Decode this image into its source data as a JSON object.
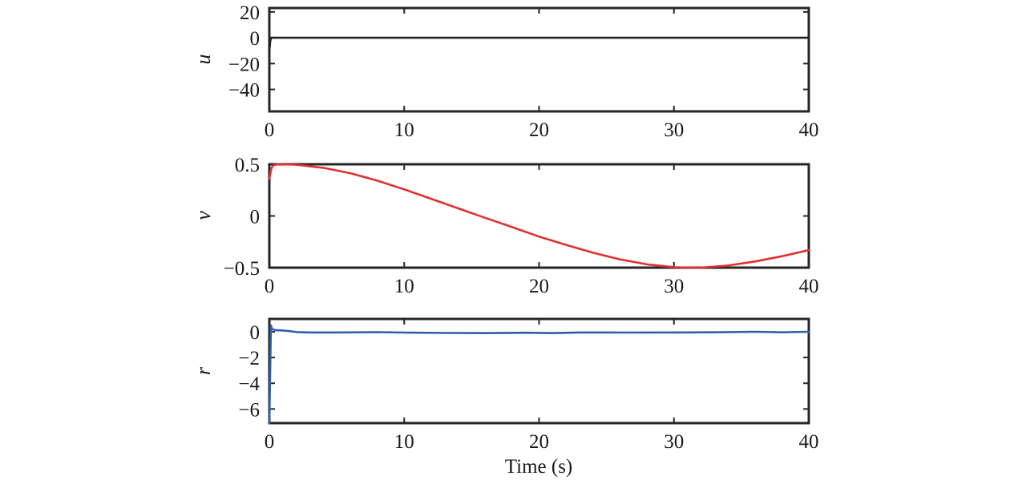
{
  "chart_data": [
    {
      "type": "line",
      "ylabel": "u",
      "xlabel": "",
      "xlim": [
        0,
        40
      ],
      "ylim": [
        -57,
        23
      ],
      "xticks": [
        0,
        10,
        20,
        30,
        40
      ],
      "xtick_labels": [
        "0",
        "10",
        "20",
        "30",
        "40"
      ],
      "yticks": [
        20,
        0,
        -20,
        -40
      ],
      "ytick_labels": [
        "20",
        "0",
        "−20",
        "−40"
      ],
      "grid": false,
      "series": [
        {
          "color": "#222222",
          "x": [
            0,
            0.08,
            0.15,
            1,
            5,
            10,
            20,
            30,
            40
          ],
          "y": [
            -10,
            -2,
            0,
            0,
            0,
            0,
            0,
            0,
            0
          ]
        }
      ]
    },
    {
      "type": "line",
      "ylabel": "v",
      "xlabel": "",
      "xlim": [
        0,
        40
      ],
      "ylim": [
        -0.5,
        0.5
      ],
      "xticks": [
        0,
        10,
        20,
        30,
        40
      ],
      "xtick_labels": [
        "0",
        "10",
        "20",
        "30",
        "40"
      ],
      "yticks": [
        0.5,
        0,
        -0.5
      ],
      "ytick_labels": [
        "0.5",
        "0",
        "−0.5"
      ],
      "grid": false,
      "series": [
        {
          "color": "#e03030",
          "x": [
            0,
            0.15,
            0.3,
            0.6,
            1,
            2,
            4,
            6,
            8,
            10,
            12,
            14,
            16,
            18,
            20,
            22,
            24,
            26,
            28,
            30,
            31,
            32,
            34,
            36,
            38,
            40
          ],
          "y": [
            0.36,
            0.46,
            0.49,
            0.5,
            0.5,
            0.495,
            0.466,
            0.414,
            0.342,
            0.257,
            0.166,
            0.074,
            -0.018,
            -0.108,
            -0.2,
            -0.28,
            -0.356,
            -0.42,
            -0.468,
            -0.495,
            -0.5,
            -0.5,
            -0.48,
            -0.44,
            -0.39,
            -0.33
          ]
        }
      ]
    },
    {
      "type": "line",
      "ylabel": "r",
      "xlabel": "Time (s)",
      "xlim": [
        0,
        40
      ],
      "ylim": [
        -7.1,
        1.0
      ],
      "xticks": [
        0,
        10,
        20,
        30,
        40
      ],
      "xtick_labels": [
        "0",
        "10",
        "20",
        "30",
        "40"
      ],
      "yticks": [
        0,
        -2,
        -4,
        -6
      ],
      "ytick_labels": [
        "0",
        "−2",
        "−4",
        "−6"
      ],
      "grid": false,
      "series": [
        {
          "color": "#2f5ea8",
          "x": [
            0,
            0.05,
            0.12,
            0.2,
            0.5,
            1,
            1.5,
            2,
            3,
            5,
            8,
            10,
            13,
            16,
            19,
            21,
            23,
            26,
            30,
            33,
            36,
            38,
            40
          ],
          "y": [
            -7.1,
            -4.0,
            0.5,
            0.2,
            0.12,
            0.1,
            0.05,
            -0.02,
            -0.05,
            -0.05,
            -0.03,
            -0.06,
            -0.09,
            -0.1,
            -0.07,
            -0.1,
            -0.05,
            -0.06,
            -0.05,
            -0.04,
            0.0,
            -0.04,
            0.0
          ]
        }
      ]
    }
  ]
}
